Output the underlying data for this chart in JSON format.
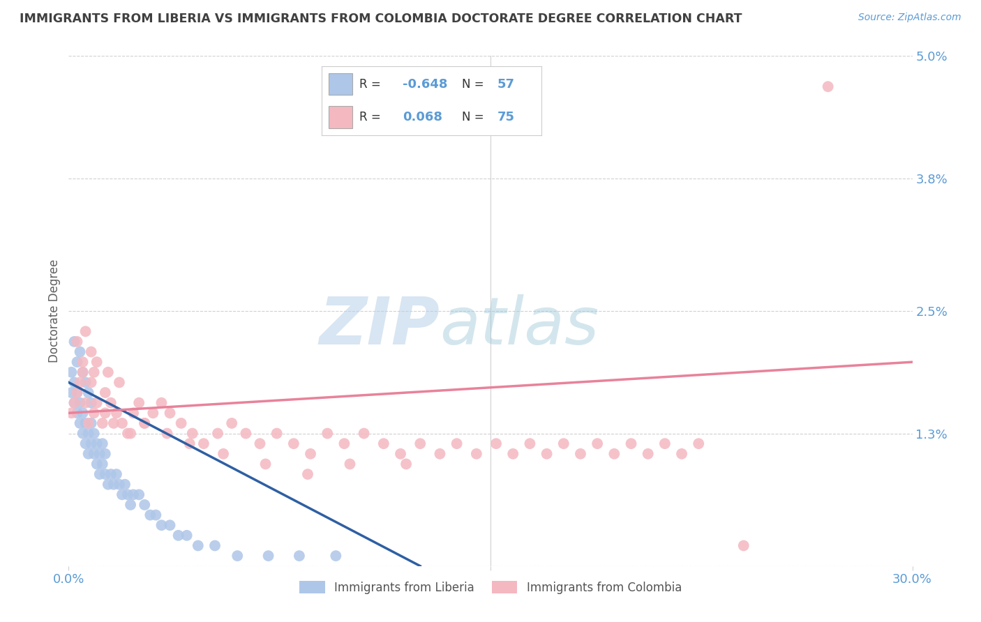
{
  "title": "IMMIGRANTS FROM LIBERIA VS IMMIGRANTS FROM COLOMBIA DOCTORATE DEGREE CORRELATION CHART",
  "source_text": "Source: ZipAtlas.com",
  "ylabel": "Doctorate Degree",
  "xmin": 0.0,
  "xmax": 0.3,
  "ymin": 0.0,
  "ymax": 0.05,
  "ytick_vals": [
    0.0,
    0.013,
    0.025,
    0.038,
    0.05
  ],
  "ytick_labels": [
    "",
    "1.3%",
    "2.5%",
    "3.8%",
    "5.0%"
  ],
  "xtick_vals": [
    0.0,
    0.15,
    0.3
  ],
  "xtick_labels": [
    "0.0%",
    "",
    "30.0%"
  ],
  "watermark_zip": "ZIP",
  "watermark_atlas": "atlas",
  "bg_color": "#ffffff",
  "grid_color": "#d0d0d0",
  "title_color": "#404040",
  "axis_label_color": "#5b9bd5",
  "scatter_liberia_color": "#aec6e8",
  "scatter_colombia_color": "#f4b8c1",
  "line_liberia_color": "#2e5fa3",
  "line_colombia_color": "#e8829a",
  "liberia_R": "-0.648",
  "liberia_N": "57",
  "colombia_R": "0.068",
  "colombia_N": "75",
  "liberia_label": "Immigrants from Liberia",
  "colombia_label": "Immigrants from Colombia",
  "liberia_scatter_x": [
    0.001,
    0.001,
    0.002,
    0.002,
    0.002,
    0.003,
    0.003,
    0.003,
    0.004,
    0.004,
    0.004,
    0.005,
    0.005,
    0.005,
    0.006,
    0.006,
    0.006,
    0.007,
    0.007,
    0.007,
    0.008,
    0.008,
    0.008,
    0.009,
    0.009,
    0.01,
    0.01,
    0.011,
    0.011,
    0.012,
    0.012,
    0.013,
    0.013,
    0.014,
    0.015,
    0.016,
    0.017,
    0.018,
    0.019,
    0.02,
    0.021,
    0.022,
    0.023,
    0.025,
    0.027,
    0.029,
    0.031,
    0.033,
    0.036,
    0.039,
    0.042,
    0.046,
    0.052,
    0.06,
    0.071,
    0.082,
    0.095
  ],
  "liberia_scatter_y": [
    0.017,
    0.019,
    0.016,
    0.018,
    0.022,
    0.015,
    0.017,
    0.02,
    0.014,
    0.016,
    0.021,
    0.013,
    0.015,
    0.019,
    0.012,
    0.014,
    0.018,
    0.011,
    0.013,
    0.017,
    0.012,
    0.014,
    0.016,
    0.011,
    0.013,
    0.01,
    0.012,
    0.009,
    0.011,
    0.01,
    0.012,
    0.009,
    0.011,
    0.008,
    0.009,
    0.008,
    0.009,
    0.008,
    0.007,
    0.008,
    0.007,
    0.006,
    0.007,
    0.007,
    0.006,
    0.005,
    0.005,
    0.004,
    0.004,
    0.003,
    0.003,
    0.002,
    0.002,
    0.001,
    0.001,
    0.001,
    0.001
  ],
  "colombia_scatter_x": [
    0.001,
    0.002,
    0.003,
    0.004,
    0.005,
    0.006,
    0.007,
    0.008,
    0.009,
    0.01,
    0.012,
    0.013,
    0.015,
    0.017,
    0.019,
    0.021,
    0.023,
    0.025,
    0.027,
    0.03,
    0.033,
    0.036,
    0.04,
    0.044,
    0.048,
    0.053,
    0.058,
    0.063,
    0.068,
    0.074,
    0.08,
    0.086,
    0.092,
    0.098,
    0.105,
    0.112,
    0.118,
    0.125,
    0.132,
    0.138,
    0.145,
    0.152,
    0.158,
    0.164,
    0.17,
    0.176,
    0.182,
    0.188,
    0.194,
    0.2,
    0.206,
    0.212,
    0.218,
    0.224,
    0.005,
    0.008,
    0.01,
    0.014,
    0.018,
    0.022,
    0.027,
    0.035,
    0.043,
    0.055,
    0.07,
    0.085,
    0.1,
    0.12,
    0.24,
    0.27,
    0.003,
    0.006,
    0.009,
    0.013,
    0.016
  ],
  "colombia_scatter_y": [
    0.015,
    0.016,
    0.017,
    0.018,
    0.019,
    0.016,
    0.014,
    0.018,
    0.015,
    0.016,
    0.014,
    0.017,
    0.016,
    0.015,
    0.014,
    0.013,
    0.015,
    0.016,
    0.014,
    0.015,
    0.016,
    0.015,
    0.014,
    0.013,
    0.012,
    0.013,
    0.014,
    0.013,
    0.012,
    0.013,
    0.012,
    0.011,
    0.013,
    0.012,
    0.013,
    0.012,
    0.011,
    0.012,
    0.011,
    0.012,
    0.011,
    0.012,
    0.011,
    0.012,
    0.011,
    0.012,
    0.011,
    0.012,
    0.011,
    0.012,
    0.011,
    0.012,
    0.011,
    0.012,
    0.02,
    0.021,
    0.02,
    0.019,
    0.018,
    0.013,
    0.014,
    0.013,
    0.012,
    0.011,
    0.01,
    0.009,
    0.01,
    0.01,
    0.002,
    0.047,
    0.022,
    0.023,
    0.019,
    0.015,
    0.014
  ],
  "liberia_line_x": [
    0.0,
    0.125
  ],
  "liberia_line_y": [
    0.018,
    0.0
  ],
  "colombia_line_x": [
    0.0,
    0.3
  ],
  "colombia_line_y": [
    0.015,
    0.02
  ]
}
